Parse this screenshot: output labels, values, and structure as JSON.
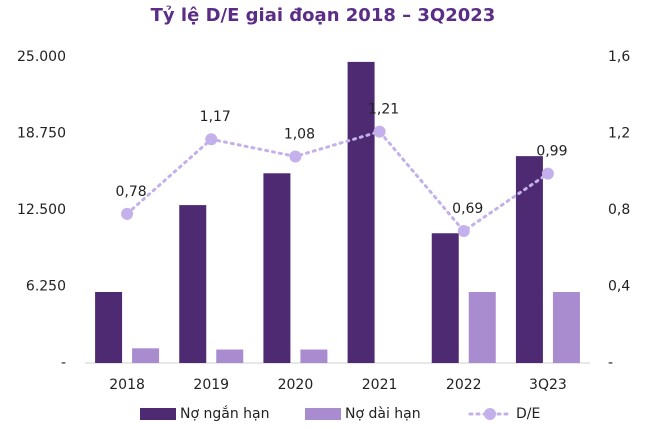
{
  "chart_data": {
    "type": "bar_line",
    "title": "Tỷ lệ D/E giai đoạn 2018 – 3Q2023",
    "categories": [
      "2018",
      "2019",
      "2020",
      "2021",
      "2022",
      "3Q23"
    ],
    "series": [
      {
        "name": "Nợ ngắn hạn",
        "type": "bar",
        "color": "#4e2a72",
        "values": [
          5800,
          12900,
          15500,
          24600,
          10600,
          16900
        ]
      },
      {
        "name": "Nợ dài hạn",
        "type": "bar",
        "color": "#a98bd0",
        "values": [
          1200,
          1100,
          1100,
          null,
          5800,
          5800
        ]
      },
      {
        "name": "D/E",
        "type": "line",
        "axis": "y2",
        "color": "#c4b0ea",
        "values": [
          0.78,
          1.17,
          1.08,
          1.21,
          0.69,
          0.99
        ],
        "value_labels": [
          "0,78",
          "1,17",
          "1,08",
          "1,21",
          "0,69",
          "0,99"
        ]
      }
    ],
    "ylim": [
      0,
      25000
    ],
    "yticks": [
      {
        "value": 0,
        "label": "-"
      },
      {
        "value": 6250,
        "label": "6.250"
      },
      {
        "value": 12500,
        "label": "12.500"
      },
      {
        "value": 18750,
        "label": "18.750"
      },
      {
        "value": 25000,
        "label": "25.000"
      }
    ],
    "y2lim": [
      0,
      1.6
    ],
    "y2ticks": [
      {
        "value": 0,
        "label": "-"
      },
      {
        "value": 0.4,
        "label": "0,4"
      },
      {
        "value": 0.8,
        "label": "0,8"
      },
      {
        "value": 1.2,
        "label": "1,2"
      },
      {
        "value": 1.6,
        "label": "1,6"
      }
    ],
    "grid": false,
    "legend": "bottom"
  }
}
